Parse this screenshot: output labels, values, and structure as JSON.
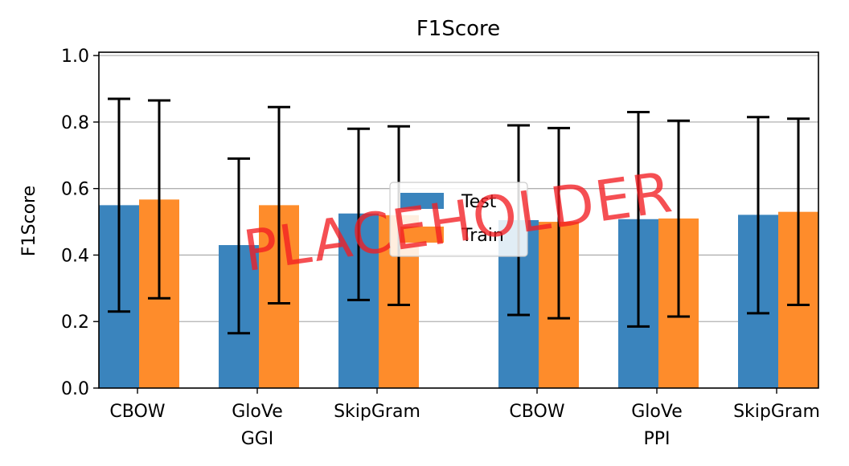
{
  "chart_data": {
    "type": "bar",
    "title": "F1Score",
    "ylabel": "F1Score",
    "xlabel": "",
    "ylim": [
      0,
      1.0
    ],
    "yticks": [
      "0.0",
      "0.2",
      "0.4",
      "0.6",
      "0.8",
      "1.0"
    ],
    "grid": "horizontal",
    "legend_position": "center",
    "categories": [
      "CBOW",
      "GloVe",
      "SkipGram",
      "CBOW",
      "GloVe",
      "SkipGram"
    ],
    "groups": [
      {
        "label": "GGI",
        "categories": [
          "CBOW",
          "GloVe",
          "SkipGram"
        ]
      },
      {
        "label": "PPI",
        "categories": [
          "CBOW",
          "GloVe",
          "SkipGram"
        ]
      }
    ],
    "series": [
      {
        "name": "Test",
        "color": "#3a84bd",
        "values": [
          0.55,
          0.43,
          0.525,
          0.505,
          0.508,
          0.521
        ],
        "err_low": [
          0.23,
          0.165,
          0.265,
          0.22,
          0.185,
          0.225
        ],
        "err_high": [
          0.87,
          0.69,
          0.78,
          0.79,
          0.83,
          0.815
        ]
      },
      {
        "name": "Train",
        "color": "#fe8c2b",
        "values": [
          0.567,
          0.55,
          0.52,
          0.5,
          0.51,
          0.53
        ],
        "err_low": [
          0.27,
          0.255,
          0.25,
          0.21,
          0.215,
          0.25
        ],
        "err_high": [
          0.865,
          0.845,
          0.787,
          0.782,
          0.804,
          0.81
        ]
      }
    ],
    "watermark": "PLACEHOLDER"
  }
}
